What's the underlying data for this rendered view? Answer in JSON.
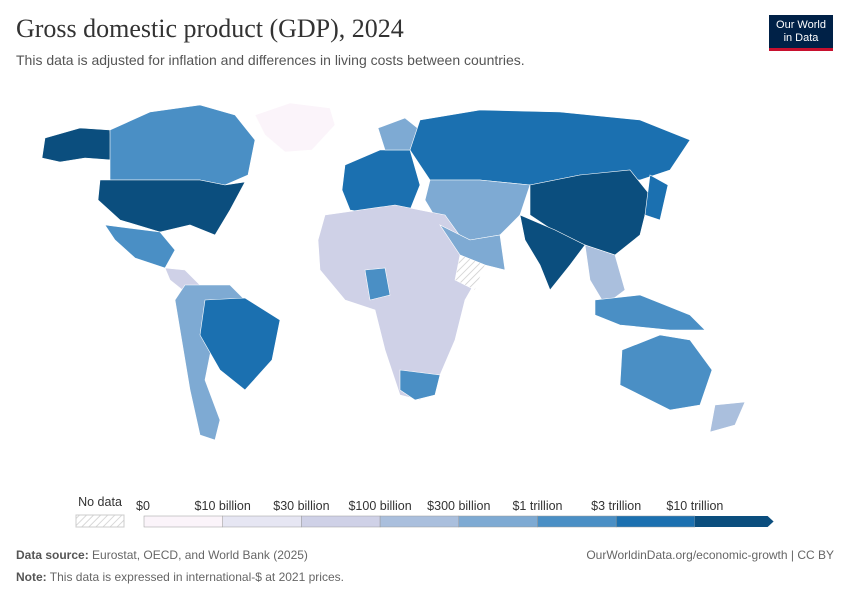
{
  "header": {
    "title": "Gross domestic product (GDP), 2024",
    "subtitle": "This data is adjusted for inflation and differences in living costs between countries.",
    "logo": [
      "Our World",
      "in Data"
    ]
  },
  "legend": {
    "no_data": "No data",
    "labels": [
      "$0",
      "$10 billion",
      "$30 billion",
      "$100 billion",
      "$300 billion",
      "$1 trillion",
      "$3 trillion",
      "$10 trillion"
    ],
    "colors": [
      "#fbf4fa",
      "#e6e6f3",
      "#cfd1e7",
      "#aabfdd",
      "#7eaad3",
      "#4a8fc5",
      "#1b70b0",
      "#0b4e7e"
    ]
  },
  "footer": {
    "source_label": "Data source:",
    "source": "Eurostat, OECD, and World Bank (2025)",
    "note_label": "Note:",
    "note": "This data is expressed in international-$ at 2021 prices.",
    "link": "OurWorldinData.org/economic-growth | CC BY"
  }
}
